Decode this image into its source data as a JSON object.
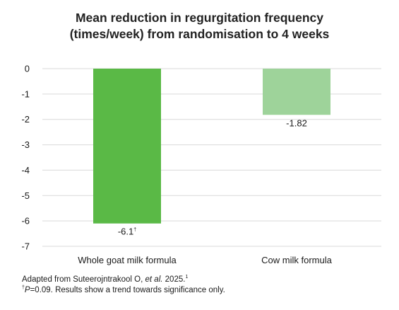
{
  "chart_data": {
    "type": "bar",
    "title": [
      "Mean reduction in regurgitation frequency",
      "(times/week) from randomisation to 4 weeks"
    ],
    "categories": [
      "Whole goat milk formula",
      "Cow milk formula"
    ],
    "values": [
      -6.1,
      -1.82
    ],
    "value_labels": [
      "-6.1",
      "-1.82"
    ],
    "value_label_superscripts": [
      "†",
      ""
    ],
    "bar_colors": [
      "#5ab946",
      "#9ed39a"
    ],
    "ylim": [
      -7,
      0
    ],
    "yticks": [
      0,
      -1,
      -2,
      -3,
      -4,
      -5,
      -6,
      -7
    ],
    "xlabel": "",
    "ylabel": "",
    "grid": true
  },
  "footnotes": {
    "line1_pre": "Adapted from Suteerojntrakool O, ",
    "line1_italic": "et al.",
    "line1_post": " 2025.",
    "line1_sup": "1",
    "line2_sup": "†",
    "line2_italic": "P",
    "line2_post": "=0.09. Results show a trend towards significance only."
  }
}
